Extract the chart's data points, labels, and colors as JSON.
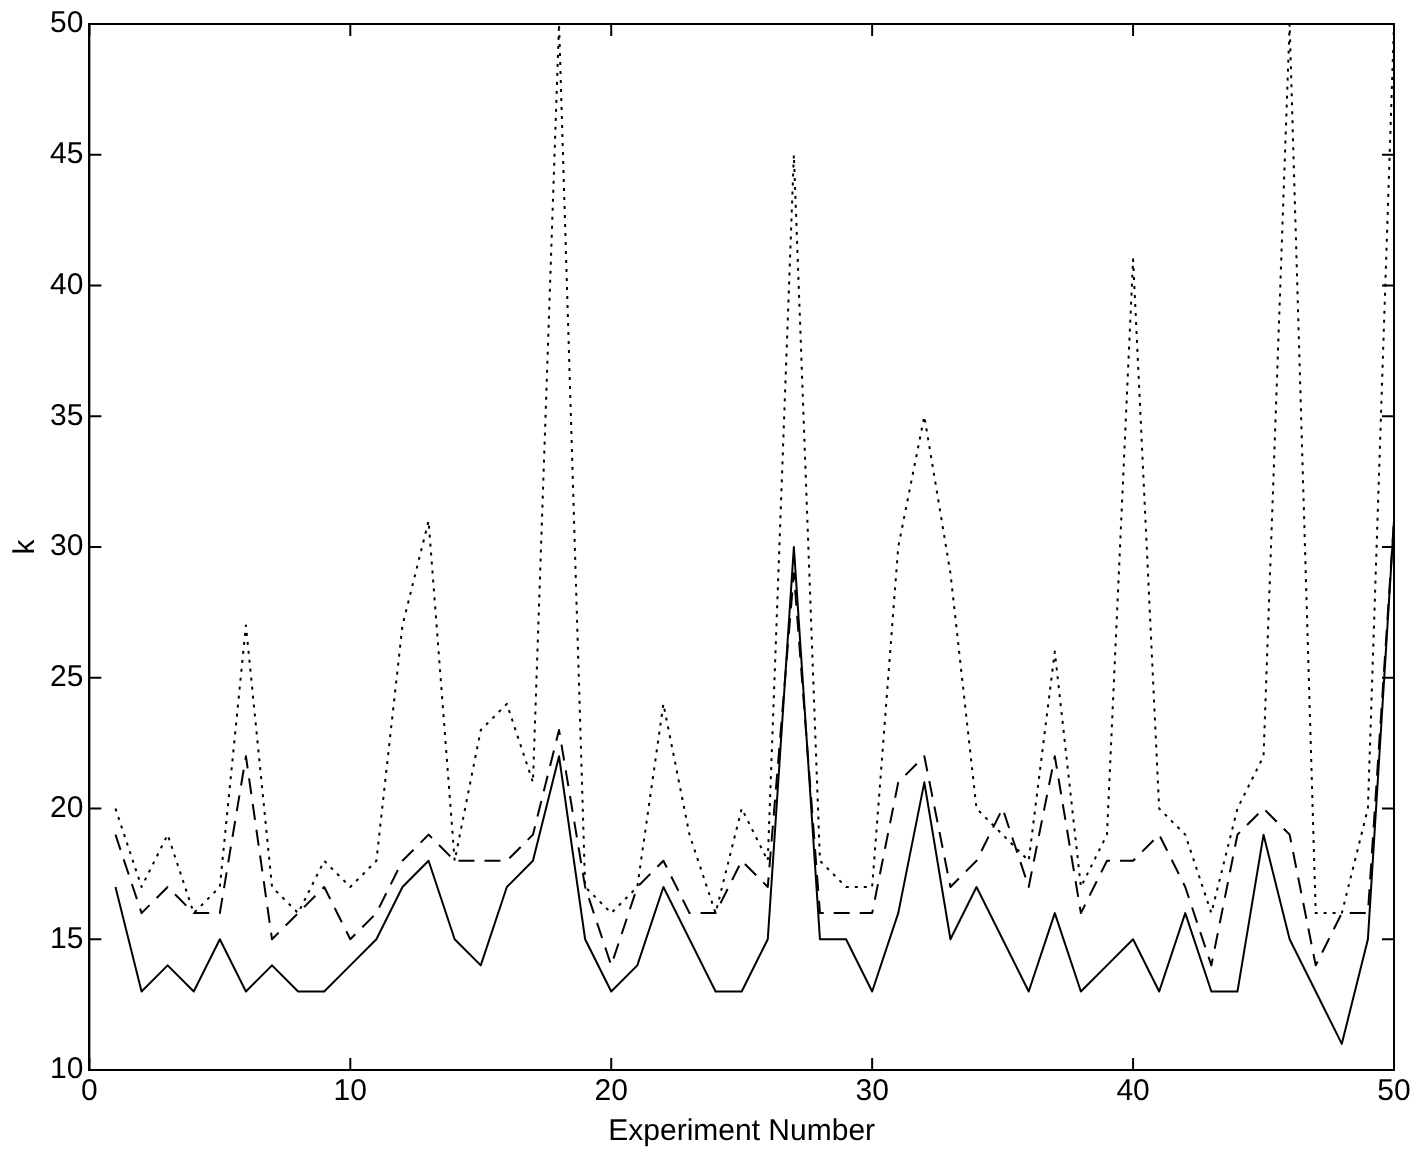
{
  "chart_data": {
    "type": "line",
    "xlabel": "Experiment Number",
    "ylabel": "k",
    "x": [
      1,
      2,
      3,
      4,
      5,
      6,
      7,
      8,
      9,
      10,
      11,
      12,
      13,
      14,
      15,
      16,
      17,
      18,
      19,
      20,
      21,
      22,
      23,
      24,
      25,
      26,
      27,
      28,
      29,
      30,
      31,
      32,
      33,
      34,
      35,
      36,
      37,
      38,
      39,
      40,
      41,
      42,
      43,
      44,
      45,
      46,
      47,
      48,
      49,
      50
    ],
    "xlim": [
      0,
      50
    ],
    "xticks": [
      0,
      10,
      20,
      30,
      40,
      50
    ],
    "ylim": [
      10,
      50
    ],
    "yticks": [
      10,
      15,
      20,
      25,
      30,
      35,
      40,
      45,
      50
    ],
    "grid": false,
    "legend": false,
    "marker": "none",
    "series": [
      {
        "color": "#000000",
        "line_style": "solid",
        "values": [
          17,
          13,
          14,
          13,
          15,
          13,
          14,
          13,
          13,
          14,
          15,
          17,
          18,
          15,
          14,
          17,
          18,
          22,
          15,
          13,
          14,
          17,
          15,
          13,
          13,
          15,
          30,
          15,
          15,
          13,
          16,
          21,
          15,
          17,
          15,
          13,
          16,
          13,
          14,
          15,
          13,
          16,
          13,
          13,
          19,
          15,
          13,
          11,
          15,
          31
        ]
      },
      {
        "color": "#000000",
        "line_style": "dashed",
        "values": [
          19,
          16,
          17,
          16,
          16,
          22,
          15,
          16,
          17,
          15,
          16,
          18,
          19,
          18,
          18,
          18,
          19,
          23,
          17,
          14,
          17,
          18,
          16,
          16,
          18,
          17,
          29,
          16,
          16,
          16,
          21,
          22,
          17,
          18,
          20,
          17,
          22,
          16,
          18,
          18,
          19,
          17,
          14,
          19,
          20,
          19,
          14,
          16,
          16,
          31
        ]
      },
      {
        "color": "#000000",
        "line_style": "dotted",
        "values": [
          20,
          17,
          19,
          16,
          17,
          27,
          17,
          16,
          18,
          17,
          18,
          27,
          31,
          18,
          23,
          24,
          21,
          50,
          17,
          16,
          17,
          24,
          19,
          16,
          20,
          18,
          45,
          18,
          17,
          17,
          30,
          35,
          29,
          20,
          19,
          18,
          26,
          17,
          19,
          41,
          20,
          19,
          16,
          20,
          22,
          50,
          16,
          16,
          20,
          50
        ]
      }
    ]
  }
}
